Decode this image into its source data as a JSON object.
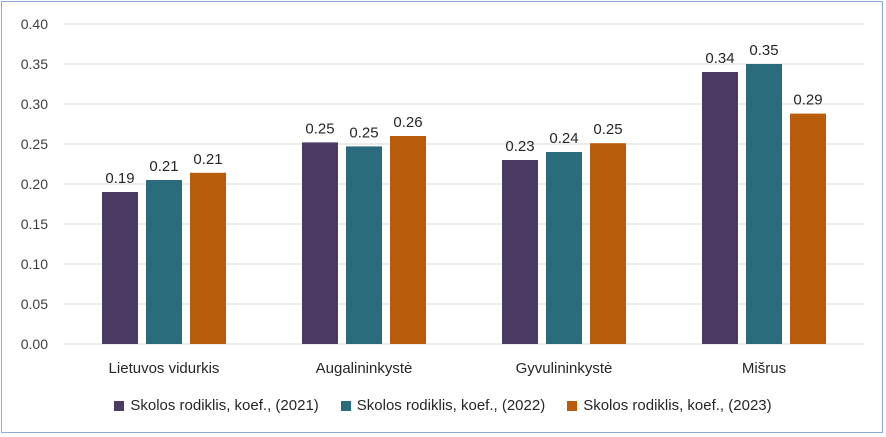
{
  "chart_data": {
    "type": "bar",
    "categories": [
      "Lietuvos vidurkis",
      "Augalininkystė",
      "Gyvulininkystė",
      "Mišrus"
    ],
    "series": [
      {
        "name": "Skolos rodiklis, koef., (2021)",
        "color": "#4b3a63",
        "values": [
          0.19,
          0.252,
          0.23,
          0.34
        ],
        "labels": [
          "0.19",
          "0.25",
          "0.23",
          "0.34"
        ]
      },
      {
        "name": "Skolos rodiklis, koef., (2022)",
        "color": "#2a6b7c",
        "values": [
          0.205,
          0.247,
          0.24,
          0.35
        ],
        "labels": [
          "0.21",
          "0.25",
          "0.24",
          "0.35"
        ]
      },
      {
        "name": "Skolos rodiklis, koef., (2023)",
        "color": "#b85d0b",
        "values": [
          0.214,
          0.26,
          0.251,
          0.288
        ],
        "labels": [
          "0.21",
          "0.26",
          "0.25",
          "0.29"
        ]
      }
    ],
    "ylim": [
      0,
      0.4
    ],
    "yticks": [
      "0.00",
      "0.05",
      "0.10",
      "0.15",
      "0.20",
      "0.25",
      "0.30",
      "0.35",
      "0.40"
    ],
    "grid": true,
    "legend_position": "bottom"
  }
}
